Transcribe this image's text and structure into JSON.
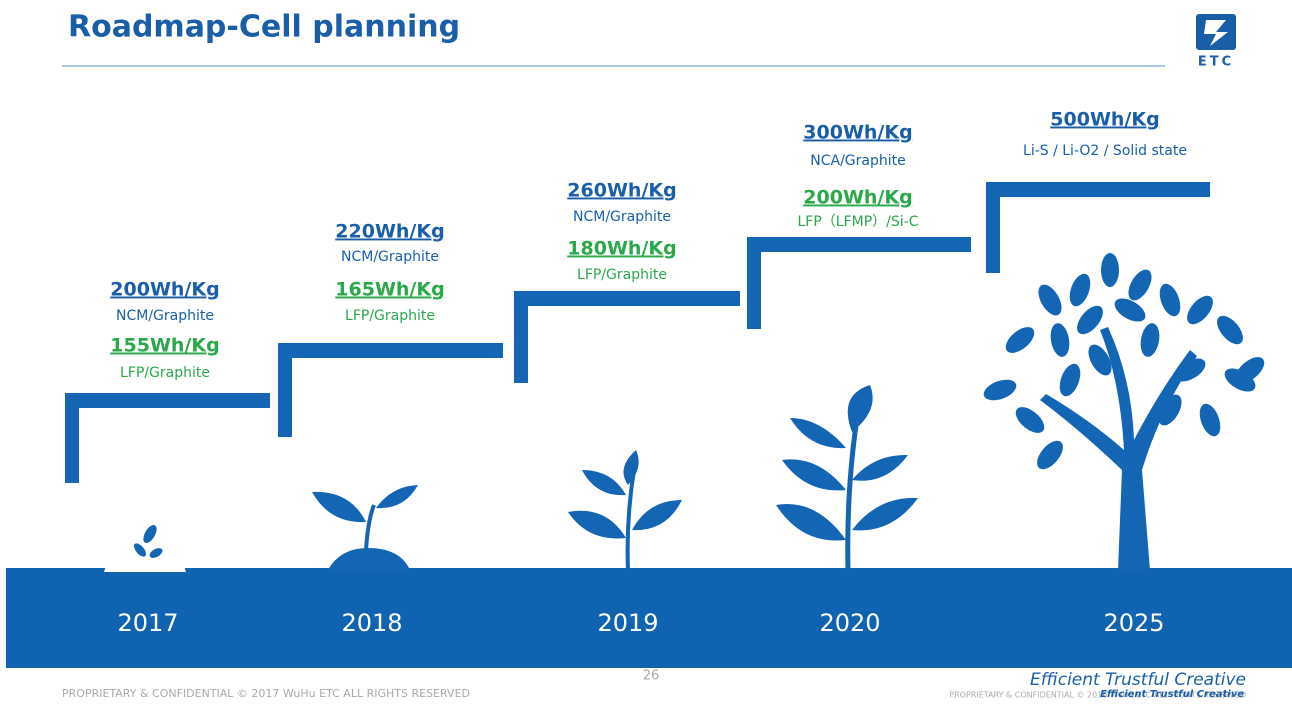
{
  "header": {
    "title": "Roadmap-Cell planning",
    "logo": "ETC"
  },
  "stages": [
    {
      "year": "2017",
      "primary": "200Wh/Kg",
      "primary_chem": "NCM/Graphite",
      "secondary": "155Wh/Kg",
      "secondary_chem": "LFP/Graphite"
    },
    {
      "year": "2018",
      "primary": "220Wh/Kg",
      "primary_chem": "NCM/Graphite",
      "secondary": "165Wh/Kg",
      "secondary_chem": "LFP/Graphite"
    },
    {
      "year": "2019",
      "primary": "260Wh/Kg",
      "primary_chem": "NCM/Graphite",
      "secondary": "180Wh/Kg",
      "secondary_chem": "LFP/Graphite"
    },
    {
      "year": "2020",
      "primary": "300Wh/Kg",
      "primary_chem": "NCA/Graphite",
      "secondary": "200Wh/Kg",
      "secondary_chem": "LFP（LFMP）/Si-C"
    },
    {
      "year": "2025",
      "primary": "500Wh/Kg",
      "primary_chem": "Li-S / Li-O2 / Solid state"
    }
  ],
  "footer": {
    "left": "PROPRIETARY & CONFIDENTIAL  © 2017 WuHu ETC ALL RIGHTS RESERVED",
    "page": "26",
    "slogan": "Efficient  Trustful  Creative",
    "right": "PROPRIETARY & CONFIDENTIAL © 2016 WuHu ETC ALL RIGHTS RESERVED",
    "slogan_small": "Efficient  Trustful  Creative"
  }
}
